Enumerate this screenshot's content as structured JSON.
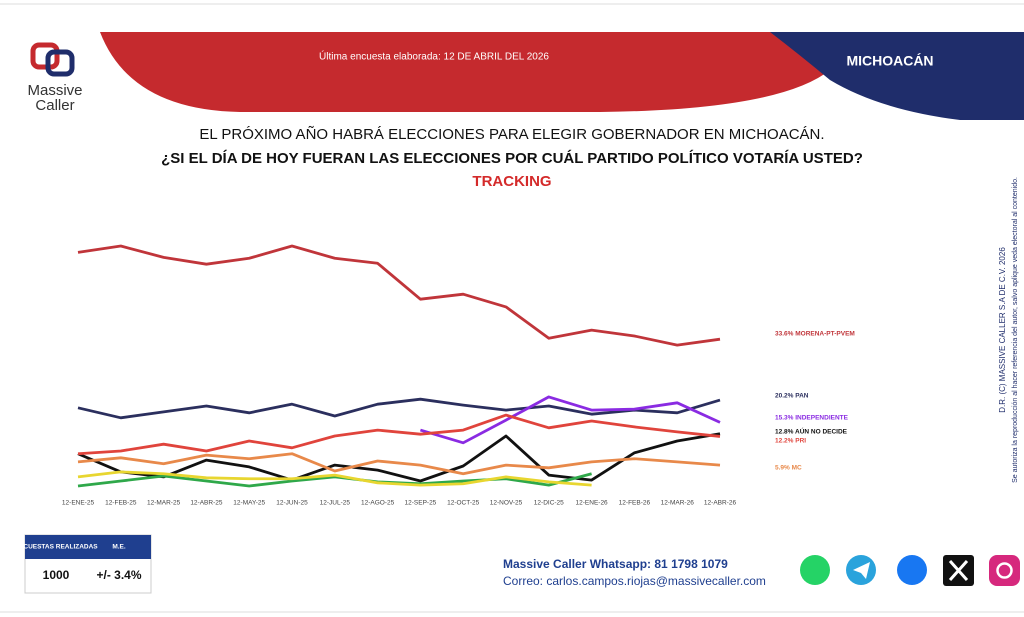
{
  "header": {
    "logo": [
      "Massive",
      "Caller"
    ],
    "last_survey": "Última encuesta elaborada: 12 DE ABRIL DEL 2026",
    "region": "MICHOACÁN"
  },
  "question": [
    "EL PRÓXIMO AÑO HABRÁ ELECCIONES PARA ELEGIR GOBERNADOR EN MICHOACÁN.",
    "¿SI EL DÍA DE HOY FUERAN LAS ELECCIONES POR CUÁL PARTIDO POLÍTICO VOTARÍA USTED?",
    "TRACKING"
  ],
  "chart_data": {
    "type": "line",
    "categories": [
      "12-ENE-25",
      "12-FEB-25",
      "12-MAR-25",
      "12-ABR-25",
      "12-MAY-25",
      "12-JUN-25",
      "12-JUL-25",
      "12-AGO-25",
      "12-SEP-25",
      "12-OCT-25",
      "12-NOV-25",
      "12-DIC-25",
      "12-ENE-26",
      "12-FEB-26",
      "12-MAR-26",
      "12-ABR-26"
    ],
    "series": [
      {
        "name": "33.6% MORENA-PT-PVEM",
        "color": "#c0353a",
        "values": [
          52.7,
          54.1,
          51.6,
          50.1,
          51.4,
          54.1,
          51.4,
          50.3,
          42.4,
          43.5,
          40.7,
          33.8,
          35.6,
          34.3,
          32.3,
          33.6
        ]
      },
      {
        "name": "20.2% PAN",
        "color": "#2b2f5e",
        "values": [
          18.5,
          16.3,
          17.6,
          18.9,
          17.4,
          19.3,
          16.7,
          19.3,
          20.4,
          19.1,
          18.0,
          18.9,
          17.1,
          18.0,
          17.4,
          20.2
        ]
      },
      {
        "name": "15.3% INDEPENDIENTE",
        "color": "#8a2be2",
        "values": [
          null,
          null,
          null,
          null,
          null,
          null,
          null,
          null,
          13.6,
          10.8,
          15.8,
          20.9,
          18.0,
          18.2,
          19.6,
          15.3
        ]
      },
      {
        "name": "12.8% AÚN NO DECIDE",
        "color": "#111111",
        "values": [
          8.4,
          4.4,
          3.3,
          7.0,
          5.5,
          2.6,
          5.9,
          4.8,
          2.4,
          5.7,
          12.3,
          3.7,
          2.6,
          8.6,
          11.2,
          12.8
        ]
      },
      {
        "name": "12.2% PRI",
        "color": "#e0443c",
        "values": [
          8.4,
          9.0,
          10.5,
          9.0,
          11.2,
          9.7,
          12.3,
          13.6,
          12.7,
          13.6,
          16.9,
          14.1,
          15.6,
          14.3,
          13.2,
          12.2
        ]
      },
      {
        "name": "5.9% MC",
        "color": "#e8894a",
        "values": [
          6.6,
          7.5,
          6.2,
          8.1,
          7.3,
          8.4,
          4.6,
          6.8,
          5.9,
          4.0,
          5.9,
          5.3,
          6.6,
          7.3,
          6.6,
          5.9
        ]
      },
      {
        "color": "#2fa84a",
        "values": [
          1.3,
          2.4,
          3.5,
          2.4,
          1.3,
          2.4,
          3.3,
          2.2,
          1.8,
          2.4,
          2.9,
          1.5,
          4.0,
          null,
          null,
          null
        ]
      },
      {
        "color": "#e8d630",
        "values": [
          3.3,
          4.4,
          4.0,
          3.1,
          2.9,
          2.9,
          3.7,
          2.0,
          1.5,
          1.8,
          3.3,
          2.2,
          1.5,
          null,
          null,
          null
        ]
      }
    ]
  },
  "copyright": [
    "D.R. (C) MASSIVE CALLER S.A DE C.V. 2026",
    "Se autoriza la reproducción al hacer referencia del autor, salvo aplique veda electoral al contenido."
  ],
  "table": {
    "header": [
      "ENCUESTAS REALIZADAS",
      "M.E."
    ],
    "row": [
      "1000",
      "+/- 3.4%"
    ]
  },
  "contact": [
    "Massive Caller Whatsapp: 81 1798 1079",
    "Correo: carlos.campos.riojas@massivecaller.com"
  ]
}
